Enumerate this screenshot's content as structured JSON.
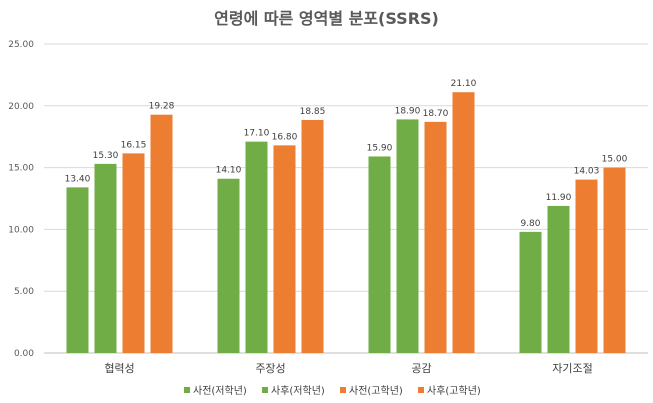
{
  "chart_data": {
    "type": "bar",
    "title": "연령에 따른 영역별 분포(SSRS)",
    "xlabel": "",
    "ylabel": "",
    "ylim": [
      0,
      25
    ],
    "yticks": [
      "0.00",
      "5.00",
      "10.00",
      "15.00",
      "20.00",
      "25.00"
    ],
    "grid": true,
    "legend_position": "bottom",
    "categories": [
      "협력성",
      "주장성",
      "공감",
      "자기조절"
    ],
    "series": [
      {
        "name": "사전(저학년)",
        "color": "#70AD47",
        "values": [
          13.4,
          14.1,
          15.9,
          9.8
        ],
        "labels": [
          "13.40",
          "14.10",
          "15.90",
          "9.80"
        ]
      },
      {
        "name": "사후(저학년)",
        "color": "#70AD47",
        "values": [
          15.3,
          17.1,
          18.9,
          11.9
        ],
        "labels": [
          "15.30",
          "17.10",
          "18.90",
          "11.90"
        ]
      },
      {
        "name": "사전(고학년)",
        "color": "#ED7D31",
        "values": [
          16.15,
          16.8,
          18.7,
          14.03
        ],
        "labels": [
          "16.15",
          "16.80",
          "18.70",
          "14.03"
        ]
      },
      {
        "name": "사후(고학년)",
        "color": "#ED7D31",
        "values": [
          19.28,
          18.85,
          21.1,
          15.0
        ],
        "labels": [
          "19.28",
          "18.85",
          "21.10",
          "15.00"
        ]
      }
    ]
  }
}
